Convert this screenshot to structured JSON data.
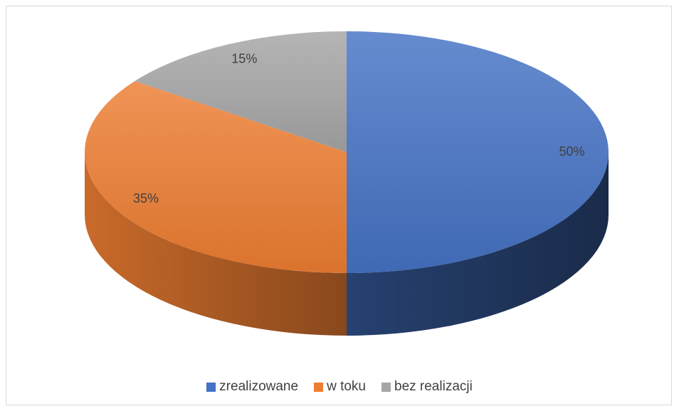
{
  "chart_data": {
    "type": "pie",
    "style": "3d",
    "categories": [
      "zrealizowane",
      "w toku",
      "bez realizacji"
    ],
    "values": [
      50,
      35,
      15
    ],
    "data_labels": [
      "50%",
      "35%",
      "15%"
    ],
    "colors": [
      "#4472c4",
      "#ed7d31",
      "#a5a5a5"
    ],
    "legend_position": "bottom",
    "title": ""
  }
}
